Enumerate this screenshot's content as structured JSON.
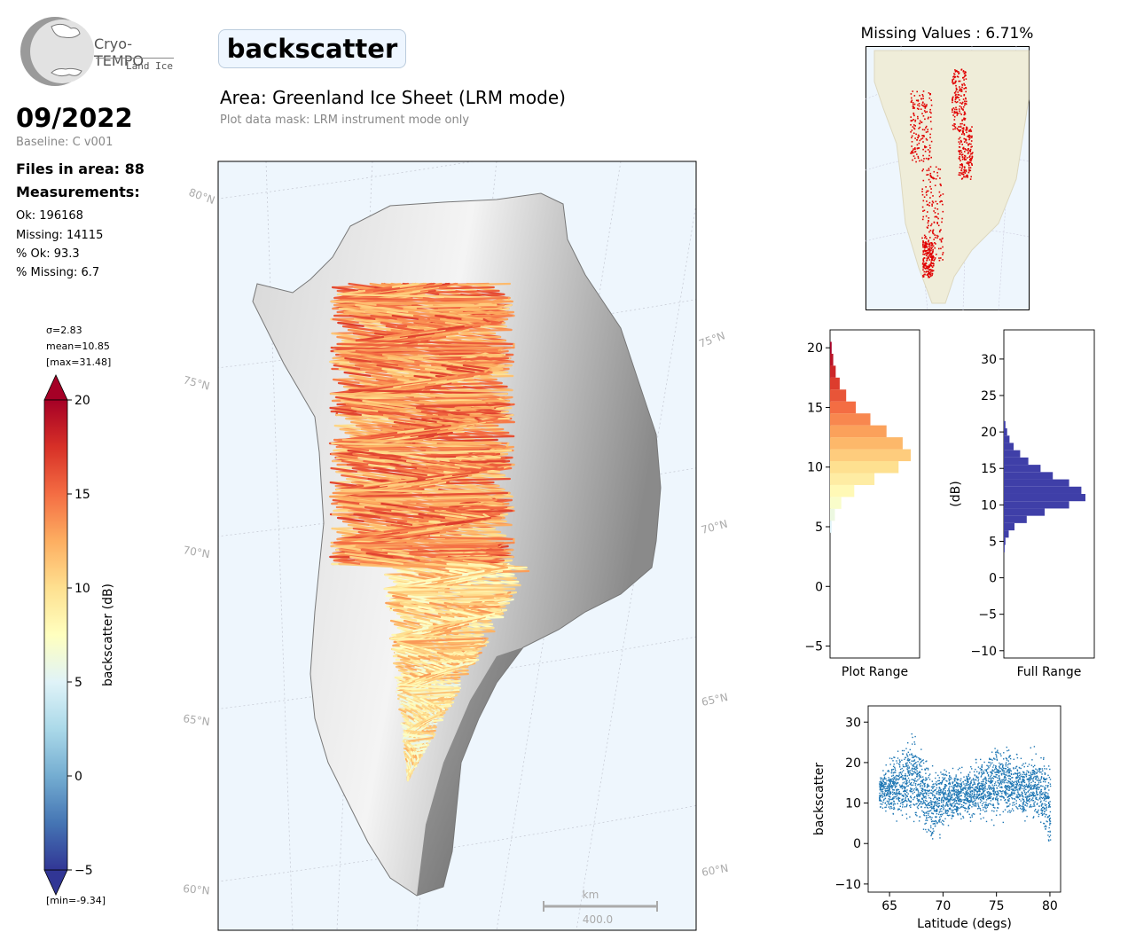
{
  "header": {
    "logo_name": "Cryo-TEMPO",
    "logo_sub": "Land Ice",
    "title": "backscatter",
    "area": "Area: Greenland Ice Sheet (LRM mode)",
    "mask_note": "Plot data mask: LRM instrument mode only"
  },
  "stats": {
    "date": "09/2022",
    "baseline": "Baseline: C v001",
    "files": "Files in area: 88",
    "measurements_heading": "Measurements:",
    "ok": "Ok: 196168",
    "missing": "Missing: 14115",
    "pct_ok": "% Ok: 93.3",
    "pct_missing": "% Missing: 6.7"
  },
  "colorbar": {
    "sigma": "σ=2.83",
    "mean": "mean=10.85",
    "max": "[max=31.48]",
    "min": "[min=-9.34]",
    "label": "backscatter (dB)",
    "ticks": [
      "20",
      "15",
      "10",
      "5",
      "0",
      "−5"
    ],
    "range": [
      -5,
      20
    ],
    "colors": [
      "#313695",
      "#4575b4",
      "#74add1",
      "#abd9e9",
      "#e0f3f8",
      "#ffffbf",
      "#fee090",
      "#fdae61",
      "#f46d43",
      "#d73027",
      "#a50026"
    ]
  },
  "map": {
    "lat_labels_left": [
      "80°N",
      "75°N",
      "70°N",
      "65°N",
      "60°N"
    ],
    "lat_labels_right": [
      "75°N",
      "70°N",
      "65°N",
      "60°N"
    ],
    "scale_unit": "km",
    "scale_value": "400.0"
  },
  "missing_map": {
    "title": "Missing Values : 6.71%"
  },
  "chart_data": [
    {
      "type": "bar",
      "orientation": "horizontal",
      "title": "",
      "xlabel": "Plot Range",
      "ylabel": "",
      "ylim": [
        -6,
        21.5
      ],
      "yticks": [
        "20",
        "15",
        "10",
        "5",
        "0",
        "−5"
      ],
      "bins": [
        {
          "y": 20,
          "count": 0.02
        },
        {
          "y": 19,
          "count": 0.04
        },
        {
          "y": 18,
          "count": 0.07
        },
        {
          "y": 17,
          "count": 0.12
        },
        {
          "y": 16,
          "count": 0.2
        },
        {
          "y": 15,
          "count": 0.32
        },
        {
          "y": 14,
          "count": 0.5
        },
        {
          "y": 13,
          "count": 0.7
        },
        {
          "y": 12,
          "count": 0.9
        },
        {
          "y": 11,
          "count": 1.0
        },
        {
          "y": 10,
          "count": 0.85
        },
        {
          "y": 9,
          "count": 0.55
        },
        {
          "y": 8,
          "count": 0.3
        },
        {
          "y": 7,
          "count": 0.14
        },
        {
          "y": 6,
          "count": 0.06
        },
        {
          "y": 5,
          "count": 0.02
        }
      ]
    },
    {
      "type": "bar",
      "orientation": "horizontal",
      "title": "",
      "xlabel": "Full Range",
      "ylabel": "(dB)",
      "ylim": [
        -11,
        34
      ],
      "yticks": [
        "30",
        "25",
        "20",
        "15",
        "10",
        "5",
        "0",
        "−5",
        "−10"
      ],
      "color": "#3f3fa8",
      "bins": [
        {
          "y": 21,
          "count": 0.02
        },
        {
          "y": 20,
          "count": 0.04
        },
        {
          "y": 19,
          "count": 0.07
        },
        {
          "y": 18,
          "count": 0.12
        },
        {
          "y": 17,
          "count": 0.2
        },
        {
          "y": 16,
          "count": 0.3
        },
        {
          "y": 15,
          "count": 0.45
        },
        {
          "y": 14,
          "count": 0.6
        },
        {
          "y": 13,
          "count": 0.8
        },
        {
          "y": 12,
          "count": 0.95
        },
        {
          "y": 11,
          "count": 1.0
        },
        {
          "y": 10,
          "count": 0.8
        },
        {
          "y": 9,
          "count": 0.5
        },
        {
          "y": 8,
          "count": 0.28
        },
        {
          "y": 7,
          "count": 0.13
        },
        {
          "y": 6,
          "count": 0.06
        },
        {
          "y": 5,
          "count": 0.02
        },
        {
          "y": 4,
          "count": 0.01
        }
      ]
    },
    {
      "type": "scatter",
      "title": "",
      "xlabel": "Latitude (degs)",
      "ylabel": "backscatter",
      "xlim": [
        63,
        81
      ],
      "ylim": [
        -12,
        34
      ],
      "xticks": [
        "65",
        "70",
        "75",
        "80"
      ],
      "yticks": [
        "30",
        "20",
        "10",
        "0",
        "−10"
      ],
      "color": "#1f77b4",
      "band": [
        {
          "x": 64,
          "low": 8,
          "high": 18
        },
        {
          "x": 65,
          "low": 5,
          "high": 23
        },
        {
          "x": 66,
          "low": 4,
          "high": 26
        },
        {
          "x": 67,
          "low": 3,
          "high": 30
        },
        {
          "x": 68,
          "low": 2,
          "high": 25
        },
        {
          "x": 69,
          "low": -4,
          "high": 22
        },
        {
          "x": 70,
          "low": 2,
          "high": 22
        },
        {
          "x": 71,
          "low": 4,
          "high": 20
        },
        {
          "x": 72,
          "low": 4,
          "high": 20
        },
        {
          "x": 73,
          "low": 5,
          "high": 22
        },
        {
          "x": 74,
          "low": 4,
          "high": 24
        },
        {
          "x": 75,
          "low": 4,
          "high": 27
        },
        {
          "x": 76,
          "low": 5,
          "high": 25
        },
        {
          "x": 77,
          "low": 4,
          "high": 24
        },
        {
          "x": 78,
          "low": 4,
          "high": 24
        },
        {
          "x": 79,
          "low": 3,
          "high": 25
        },
        {
          "x": 80,
          "low": -5,
          "high": 24
        }
      ]
    }
  ]
}
